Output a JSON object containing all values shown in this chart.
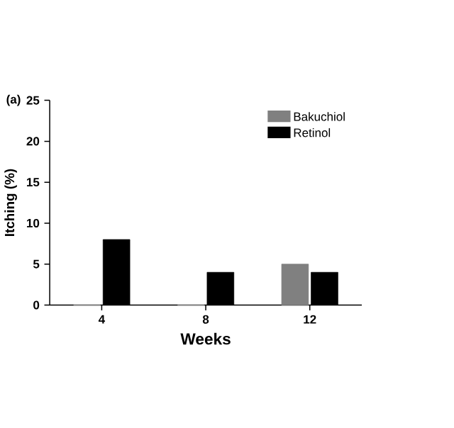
{
  "chart_data": {
    "type": "bar",
    "xlabel": "Weeks",
    "ylabel": "Itching (%)",
    "annotations": [
      "(a)"
    ],
    "categories": [
      "4",
      "8",
      "12"
    ],
    "series": [
      {
        "name": "Bakuchiol",
        "color": "#808080",
        "values": [
          0,
          0,
          5
        ]
      },
      {
        "name": "Retinol",
        "color": "#000000",
        "values": [
          8,
          4,
          4
        ]
      }
    ],
    "ylim": [
      0,
      25
    ],
    "yticks": [
      0,
      5,
      10,
      15,
      20,
      25
    ],
    "legend": "top right",
    "grid": false
  }
}
